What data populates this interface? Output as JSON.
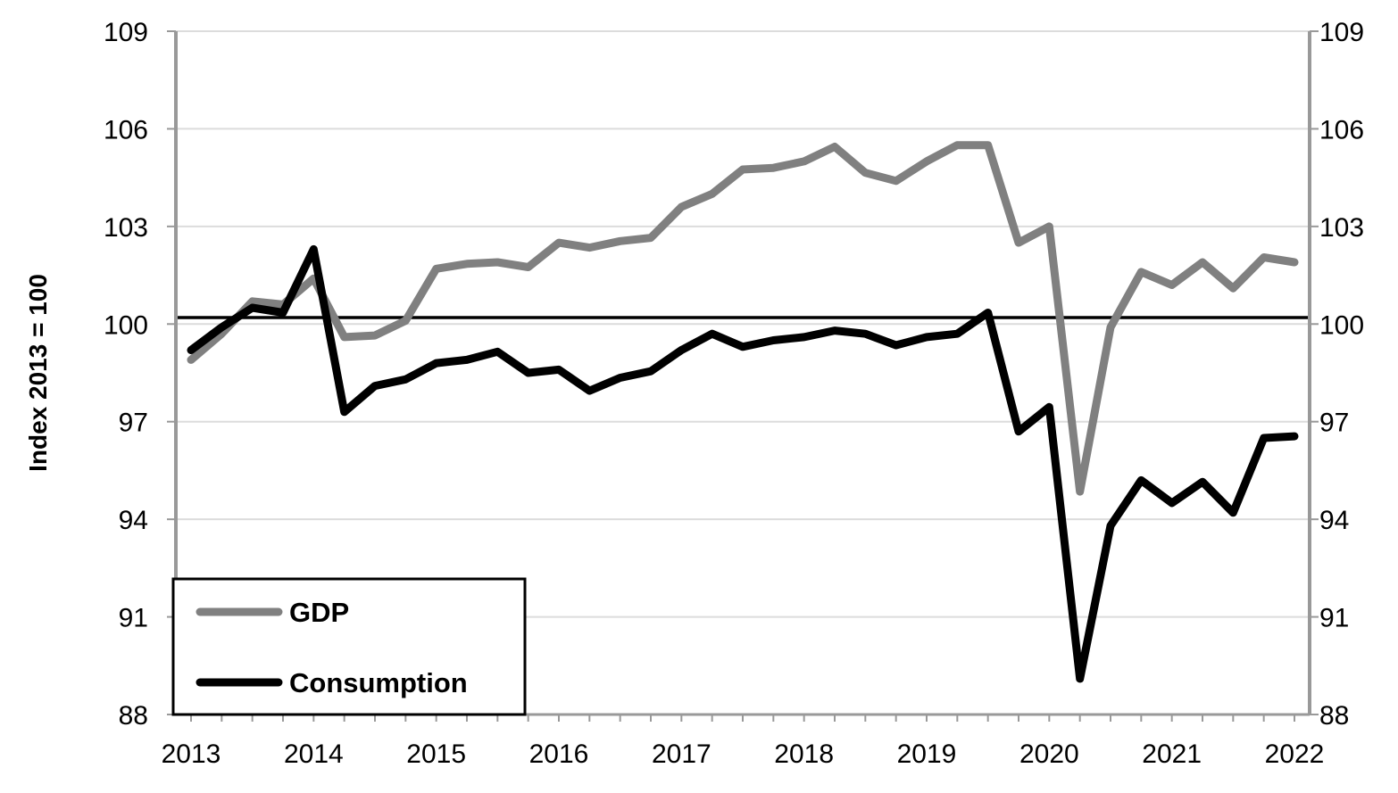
{
  "chart_data": {
    "type": "line",
    "title": "",
    "xlabel": "",
    "ylabel": "Index 2013 = 100",
    "ylim": [
      88,
      109
    ],
    "yticks": [
      "88",
      "91",
      "94",
      "97",
      "100",
      "103",
      "106",
      "109"
    ],
    "ytick_values": [
      88,
      91,
      94,
      97,
      100,
      103,
      106,
      109
    ],
    "xtick_labels": [
      "2013",
      "2014",
      "2015",
      "2016",
      "2017",
      "2018",
      "2019",
      "2020",
      "2021",
      "2022"
    ],
    "x_frequency": "quarterly",
    "reference_line": 100.2,
    "grid": true,
    "legend_position": "bottom-left",
    "series": [
      {
        "name": "GDP",
        "color": "#808080",
        "values": [
          98.9,
          99.7,
          100.7,
          100.6,
          101.4,
          99.6,
          99.65,
          100.1,
          101.7,
          101.85,
          101.9,
          101.75,
          102.5,
          102.35,
          102.55,
          102.65,
          103.6,
          104.0,
          104.75,
          104.8,
          105.0,
          105.45,
          104.65,
          104.4,
          105.0,
          105.5,
          105.5,
          102.5,
          103.0,
          94.85,
          99.9,
          101.6,
          101.2,
          101.9,
          101.1,
          102.05,
          101.9
        ]
      },
      {
        "name": "Consumption",
        "color": "#000000",
        "values": [
          99.2,
          99.9,
          100.5,
          100.35,
          102.3,
          97.3,
          98.1,
          98.3,
          98.8,
          98.9,
          99.15,
          98.5,
          98.6,
          97.95,
          98.35,
          98.55,
          99.2,
          99.7,
          99.3,
          99.5,
          99.6,
          99.8,
          99.7,
          99.35,
          99.6,
          99.7,
          100.35,
          96.7,
          97.45,
          89.1,
          93.8,
          95.2,
          94.5,
          95.15,
          94.2,
          96.5,
          96.55
        ]
      }
    ]
  }
}
